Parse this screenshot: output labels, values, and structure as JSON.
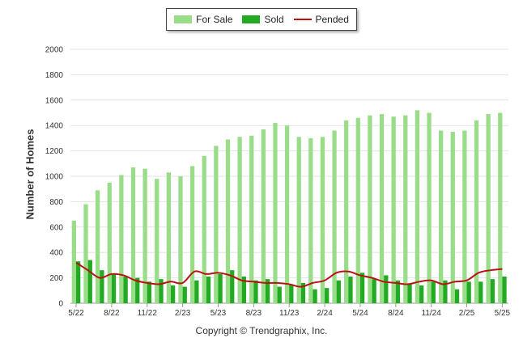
{
  "chart_data": {
    "type": "bar",
    "ylabel": "Number of Homes",
    "ylim": [
      0,
      2000
    ],
    "yticks": [
      "0",
      "200",
      "400",
      "600",
      "800",
      "1000",
      "1200",
      "1400",
      "1600",
      "1800",
      "2000"
    ],
    "xtick_labels": [
      "5/22",
      "8/22",
      "11/22",
      "2/23",
      "5/23",
      "8/23",
      "11/23",
      "2/24",
      "5/24",
      "8/24",
      "11/24",
      "2/25",
      "5/25"
    ],
    "months": [
      "5/22",
      "6/22",
      "7/22",
      "8/22",
      "9/22",
      "10/22",
      "11/22",
      "12/22",
      "1/23",
      "2/23",
      "3/23",
      "4/23",
      "5/23",
      "6/23",
      "7/23",
      "8/23",
      "9/23",
      "10/23",
      "11/23",
      "12/23",
      "1/24",
      "2/24",
      "3/24",
      "4/24",
      "5/24",
      "6/24",
      "7/24",
      "8/24",
      "9/24",
      "10/24",
      "11/24",
      "12/24",
      "1/25",
      "2/25",
      "3/25",
      "4/25",
      "5/25"
    ],
    "grid": true,
    "legend_position": "top-center",
    "series": [
      {
        "name": "For Sale",
        "type": "bar",
        "color": "#99dd88",
        "values": [
          650,
          780,
          890,
          950,
          1010,
          1070,
          1060,
          980,
          1030,
          1000,
          1080,
          1160,
          1240,
          1290,
          1310,
          1320,
          1370,
          1420,
          1400,
          1310,
          1300,
          1310,
          1360,
          1440,
          1460,
          1480,
          1490,
          1470,
          1480,
          1520,
          1500,
          1360,
          1350,
          1360,
          1440,
          1490,
          1500
        ]
      },
      {
        "name": "Sold",
        "type": "bar",
        "color": "#22aa22",
        "values": [
          330,
          340,
          260,
          230,
          210,
          200,
          170,
          190,
          140,
          130,
          180,
          210,
          230,
          260,
          210,
          180,
          190,
          130,
          150,
          160,
          110,
          120,
          180,
          210,
          240,
          190,
          220,
          180,
          150,
          140,
          170,
          180,
          110,
          170,
          170,
          190,
          210
        ]
      },
      {
        "name": "Pended",
        "type": "line",
        "color": "#bb1111",
        "values": [
          320,
          260,
          200,
          230,
          220,
          180,
          160,
          150,
          170,
          160,
          250,
          230,
          240,
          220,
          180,
          170,
          160,
          160,
          150,
          130,
          160,
          180,
          240,
          250,
          220,
          200,
          170,
          160,
          150,
          170,
          180,
          150,
          170,
          180,
          240,
          260,
          270
        ]
      }
    ]
  },
  "footer": {
    "copyright": "Copyright © Trendgraphix, Inc."
  }
}
